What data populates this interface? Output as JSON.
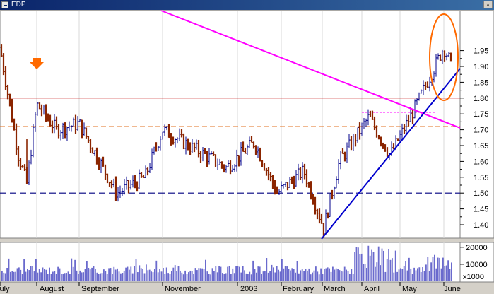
{
  "window": {
    "title": "EDP",
    "close_glyph": "×"
  },
  "colors": {
    "up_bar": "#00008b",
    "down_bar": "#8b2500",
    "trend_down": "#ff00ff",
    "trend_up": "#0000cd",
    "resistance_red": "#c00000",
    "level_orange": "#e07020",
    "support_navy": "#000080",
    "volume": "#6a6acd",
    "highlight_circle": "#ff6a00",
    "background": "#ffffff",
    "frame": "#d4d0c8"
  },
  "price_axis": {
    "tick_labels": [
      "1.95",
      "1.90",
      "1.85",
      "1.80",
      "1.75",
      "1.70",
      "1.65",
      "1.60",
      "1.55",
      "1.50",
      "1.45",
      "1.40"
    ]
  },
  "volume_axis": {
    "tick_labels": [
      "20000",
      "10000"
    ],
    "multiplier_label": "x1000"
  },
  "time_axis": {
    "tick_labels": [
      "July",
      "August",
      "September",
      "November",
      "2003",
      "February",
      "March",
      "April",
      "May",
      "June"
    ]
  },
  "annotations": {
    "arrow": "down-arrow-icon",
    "circle": "highlight-circle"
  },
  "chart_data": {
    "type": "bar",
    "title": "",
    "xlabel": "",
    "ylabel": "",
    "ylim": [
      1.37,
      1.99
    ],
    "x_start": "2002-07",
    "x_end": "2003-06",
    "levels": {
      "resistance": 1.8,
      "orange_dashed": 1.71,
      "support_dashed": 1.5
    },
    "price_path_keypoints": [
      {
        "x": "2002-07 start",
        "close": 1.96
      },
      {
        "x": "2002-07 mid",
        "close": 1.62
      },
      {
        "x": "2002-07 late",
        "close": 1.53
      },
      {
        "x": "2002-08 start",
        "close": 1.78
      },
      {
        "x": "2002-08",
        "close": 1.7
      },
      {
        "x": "2002-09",
        "close": 1.72
      },
      {
        "x": "2002-09 late",
        "close": 1.5
      },
      {
        "x": "2002-10",
        "close": 1.55
      },
      {
        "x": "2002-11",
        "close": 1.7
      },
      {
        "x": "2002-12",
        "close": 1.58
      },
      {
        "x": "2003-01",
        "close": 1.66
      },
      {
        "x": "2003-01 late",
        "close": 1.5
      },
      {
        "x": "2003-02",
        "close": 1.57
      },
      {
        "x": "2003-03 start",
        "close": 1.39
      },
      {
        "x": "2003-03",
        "close": 1.6
      },
      {
        "x": "2003-04",
        "close": 1.74
      },
      {
        "x": "2003-04 late",
        "close": 1.62
      },
      {
        "x": "2003-05",
        "close": 1.76
      },
      {
        "x": "2003-06",
        "close": 1.96
      },
      {
        "x": "2003-06 end",
        "close": 1.9
      }
    ],
    "volume_ylim": [
      0,
      22000
    ]
  }
}
